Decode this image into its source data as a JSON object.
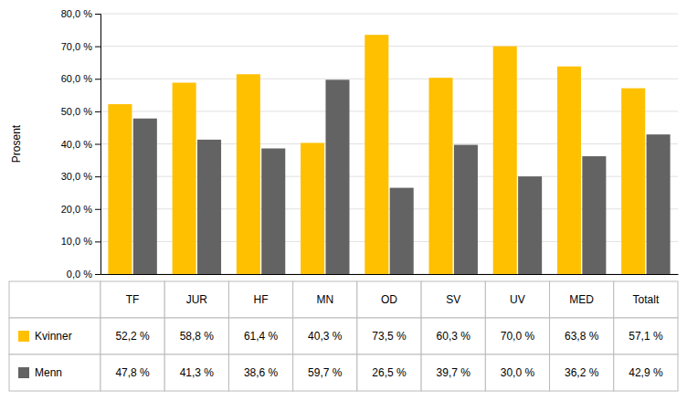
{
  "chart_data": {
    "type": "bar",
    "categories": [
      "TF",
      "JUR",
      "HF",
      "MN",
      "OD",
      "SV",
      "UV",
      "MED",
      "Totalt"
    ],
    "series": [
      {
        "name": "Kvinner",
        "color": "#FFC000",
        "values": [
          52.2,
          58.8,
          61.4,
          40.3,
          73.5,
          60.3,
          70.0,
          63.8,
          57.1
        ],
        "value_labels": [
          "52,2 %",
          "58,8 %",
          "61,4 %",
          "40,3 %",
          "73,5 %",
          "60,3 %",
          "70,0 %",
          "63,8 %",
          "57,1 %"
        ]
      },
      {
        "name": "Menn",
        "color": "#636363",
        "values": [
          47.8,
          41.3,
          38.6,
          59.7,
          26.5,
          39.7,
          30.0,
          36.2,
          42.9
        ],
        "value_labels": [
          "47,8 %",
          "41,3 %",
          "38,6 %",
          "59,7 %",
          "26,5 %",
          "39,7 %",
          "30,0 %",
          "36,2 %",
          "42,9 %"
        ]
      }
    ],
    "ylabel": "Prosent",
    "ylim": [
      0,
      80
    ],
    "yticks": [
      {
        "value": 0,
        "label": "0,0 %"
      },
      {
        "value": 10,
        "label": "10,0 %"
      },
      {
        "value": 20,
        "label": "20,0 %"
      },
      {
        "value": 30,
        "label": "30,0 %"
      },
      {
        "value": 40,
        "label": "40,0 %"
      },
      {
        "value": 50,
        "label": "50,0 %"
      },
      {
        "value": 60,
        "label": "60,0 %"
      },
      {
        "value": 70,
        "label": "70,0 %"
      },
      {
        "value": 80,
        "label": "80,0 %"
      }
    ],
    "grid": true,
    "data_labels": true
  }
}
